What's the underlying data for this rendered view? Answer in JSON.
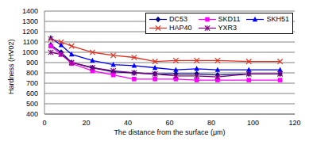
{
  "chart_data": {
    "type": "line",
    "x_label": "The distance from the surface (μm)",
    "y_label": "Hardness (HV02)",
    "x": [
      3,
      8,
      13,
      23,
      33,
      43,
      53,
      63,
      73,
      83,
      98,
      113
    ],
    "xlim": [
      0,
      120
    ],
    "xticks": [
      0,
      20,
      40,
      60,
      80,
      100,
      120
    ],
    "ylim": [
      400,
      1400
    ],
    "yticks": [
      400,
      500,
      600,
      700,
      800,
      900,
      1000,
      1100,
      1200,
      1300,
      1400
    ],
    "grid": true,
    "legend": "upper right",
    "series": [
      {
        "name": "DC53",
        "color": "#000080",
        "marker": "diamond",
        "values": [
          1070,
          1000,
          900,
          850,
          810,
          800,
          790,
          790,
          790,
          780,
          790,
          790
        ]
      },
      {
        "name": "SKD11",
        "color": "#FF00FF",
        "marker": "square",
        "values": [
          1060,
          980,
          890,
          820,
          780,
          740,
          740,
          740,
          730,
          730,
          730,
          730
        ]
      },
      {
        "name": "SKH51",
        "color": "#0000FF",
        "marker": "triangle",
        "values": [
          1140,
          1070,
          980,
          920,
          880,
          870,
          850,
          830,
          840,
          830,
          830,
          830
        ]
      },
      {
        "name": "HAP40",
        "color": "#E03020",
        "marker": "x",
        "values": [
          1130,
          1100,
          1060,
          1000,
          970,
          950,
          910,
          920,
          920,
          920,
          910,
          910
        ]
      },
      {
        "name": "YXR3",
        "color": "#800080",
        "marker": "star",
        "values": [
          1000,
          980,
          900,
          850,
          820,
          800,
          790,
          770,
          770,
          760,
          790,
          790
        ]
      }
    ]
  }
}
